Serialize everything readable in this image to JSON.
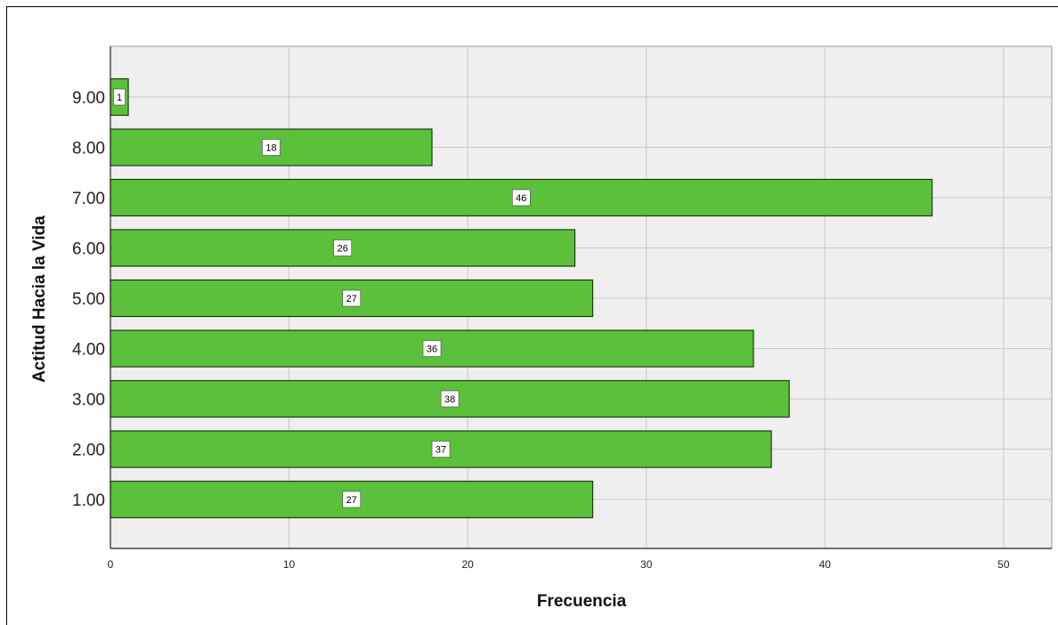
{
  "colors": {
    "bar_fill": "#5cc13a",
    "bar_stroke": "#1e3a12",
    "plot_background": "#efefef",
    "gridline": "#c8c8c8",
    "label_box": "#ffffff"
  },
  "chart_data": {
    "type": "bar",
    "orientation": "horizontal",
    "categories": [
      "9.00",
      "8.00",
      "7.00",
      "6.00",
      "5.00",
      "4.00",
      "3.00",
      "2.00",
      "1.00"
    ],
    "values": [
      1,
      18,
      46,
      26,
      27,
      36,
      38,
      37,
      27
    ],
    "data_labels": [
      "1",
      "18",
      "46",
      "26",
      "27",
      "36",
      "38",
      "37",
      "27"
    ],
    "xlabel": "Frecuencia",
    "ylabel": "Actitud Hacia la Vida",
    "x_ticks": [
      "0",
      "10",
      "20",
      "30",
      "40",
      "50"
    ],
    "xlim": [
      0,
      52.7
    ],
    "grid": true,
    "legend": "none"
  }
}
